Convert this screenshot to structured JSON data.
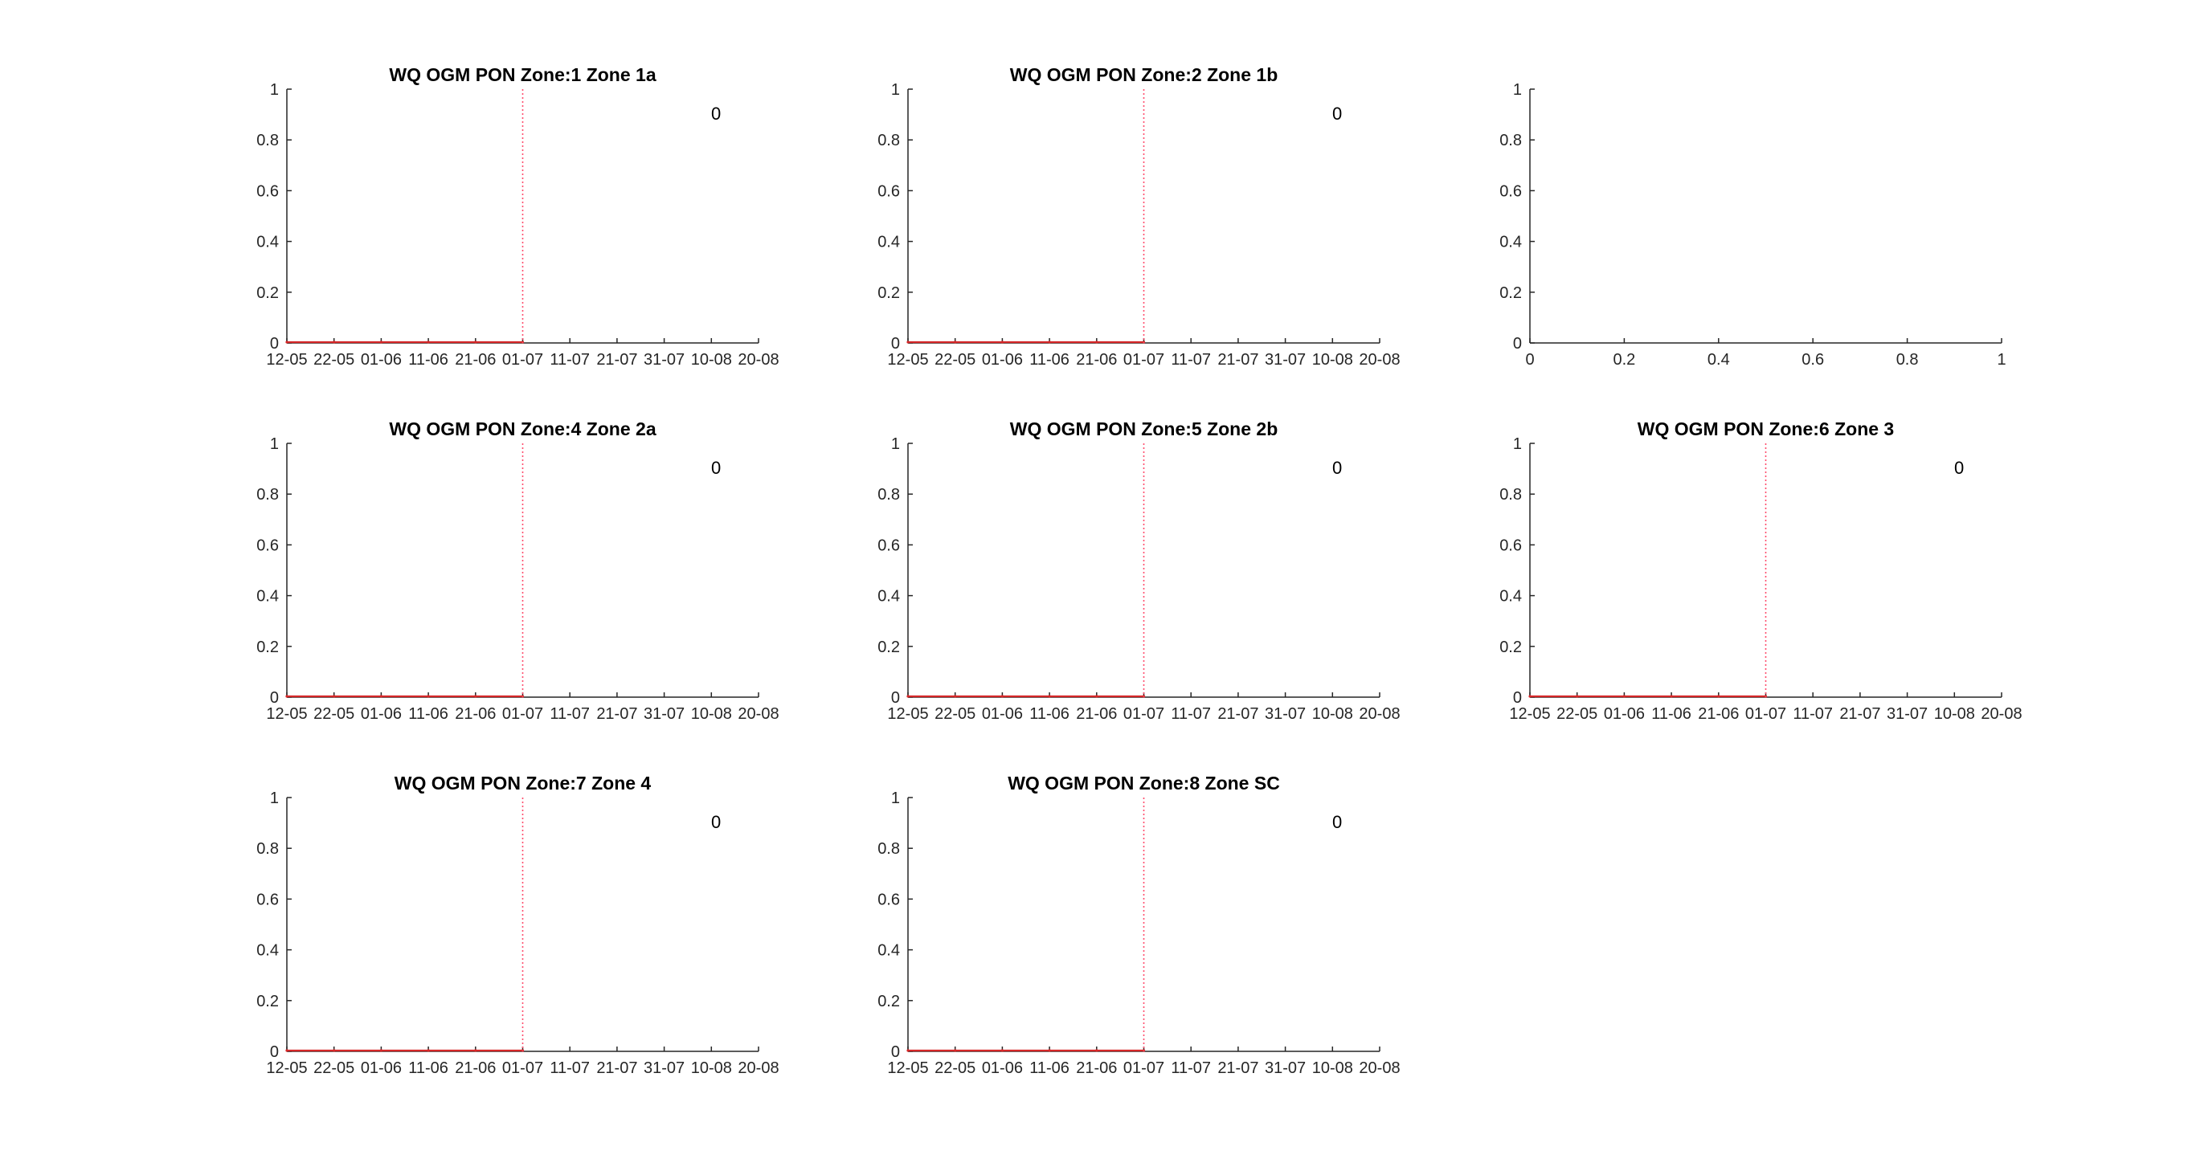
{
  "figure": {
    "background": "#ffffff"
  },
  "style": {
    "axis_color": "#262626",
    "series_color": "#d62728",
    "marker_color": "#ff4d6d"
  },
  "chart_data": [
    {
      "type": "line",
      "title": "WQ OGM PON Zone:1 Zone 1a",
      "xlabel": "",
      "ylabel": "",
      "x_type": "date",
      "xticks": [
        "12-05",
        "22-05",
        "01-06",
        "11-06",
        "21-06",
        "01-07",
        "11-07",
        "21-07",
        "31-07",
        "10-08",
        "20-08"
      ],
      "yticks": [
        "0",
        "0.2",
        "0.4",
        "0.6",
        "0.8",
        "1"
      ],
      "ylim": [
        0,
        1
      ],
      "series": [
        {
          "x": [
            "12-05",
            "22-05",
            "01-06",
            "11-06",
            "21-06",
            "01-07"
          ],
          "values": [
            0,
            0,
            0,
            0,
            0,
            0
          ]
        }
      ],
      "vline": "01-07",
      "annotation": "0",
      "grid": false
    },
    {
      "type": "line",
      "title": "WQ OGM PON Zone:2 Zone 1b",
      "xlabel": "",
      "ylabel": "",
      "x_type": "date",
      "xticks": [
        "12-05",
        "22-05",
        "01-06",
        "11-06",
        "21-06",
        "01-07",
        "11-07",
        "21-07",
        "31-07",
        "10-08",
        "20-08"
      ],
      "yticks": [
        "0",
        "0.2",
        "0.4",
        "0.6",
        "0.8",
        "1"
      ],
      "ylim": [
        0,
        1
      ],
      "series": [
        {
          "x": [
            "12-05",
            "22-05",
            "01-06",
            "11-06",
            "21-06",
            "01-07"
          ],
          "values": [
            0,
            0,
            0,
            0,
            0,
            0
          ]
        }
      ],
      "vline": "01-07",
      "annotation": "0",
      "grid": false
    },
    {
      "type": "line",
      "title": "",
      "xlabel": "",
      "ylabel": "",
      "x_type": "numeric",
      "xticks": [
        "0",
        "0.2",
        "0.4",
        "0.6",
        "0.8",
        "1"
      ],
      "yticks": [
        "0",
        "0.2",
        "0.4",
        "0.6",
        "0.8",
        "1"
      ],
      "xlim": [
        0,
        1
      ],
      "ylim": [
        0,
        1
      ],
      "series": [],
      "grid": false
    },
    {
      "type": "line",
      "title": "WQ OGM PON Zone:4 Zone 2a",
      "xlabel": "",
      "ylabel": "",
      "x_type": "date",
      "xticks": [
        "12-05",
        "22-05",
        "01-06",
        "11-06",
        "21-06",
        "01-07",
        "11-07",
        "21-07",
        "31-07",
        "10-08",
        "20-08"
      ],
      "yticks": [
        "0",
        "0.2",
        "0.4",
        "0.6",
        "0.8",
        "1"
      ],
      "ylim": [
        0,
        1
      ],
      "series": [
        {
          "x": [
            "12-05",
            "22-05",
            "01-06",
            "11-06",
            "21-06",
            "01-07"
          ],
          "values": [
            0,
            0,
            0,
            0,
            0,
            0
          ]
        }
      ],
      "vline": "01-07",
      "annotation": "0",
      "grid": false
    },
    {
      "type": "line",
      "title": "WQ OGM PON Zone:5 Zone 2b",
      "xlabel": "",
      "ylabel": "",
      "x_type": "date",
      "xticks": [
        "12-05",
        "22-05",
        "01-06",
        "11-06",
        "21-06",
        "01-07",
        "11-07",
        "21-07",
        "31-07",
        "10-08",
        "20-08"
      ],
      "yticks": [
        "0",
        "0.2",
        "0.4",
        "0.6",
        "0.8",
        "1"
      ],
      "ylim": [
        0,
        1
      ],
      "series": [
        {
          "x": [
            "12-05",
            "22-05",
            "01-06",
            "11-06",
            "21-06",
            "01-07"
          ],
          "values": [
            0,
            0,
            0,
            0,
            0,
            0
          ]
        }
      ],
      "vline": "01-07",
      "annotation": "0",
      "grid": false
    },
    {
      "type": "line",
      "title": "WQ OGM PON Zone:6 Zone 3",
      "xlabel": "",
      "ylabel": "",
      "x_type": "date",
      "xticks": [
        "12-05",
        "22-05",
        "01-06",
        "11-06",
        "21-06",
        "01-07",
        "11-07",
        "21-07",
        "31-07",
        "10-08",
        "20-08"
      ],
      "yticks": [
        "0",
        "0.2",
        "0.4",
        "0.6",
        "0.8",
        "1"
      ],
      "ylim": [
        0,
        1
      ],
      "series": [
        {
          "x": [
            "12-05",
            "22-05",
            "01-06",
            "11-06",
            "21-06",
            "01-07"
          ],
          "values": [
            0,
            0,
            0,
            0,
            0,
            0
          ]
        }
      ],
      "vline": "01-07",
      "annotation": "0",
      "grid": false
    },
    {
      "type": "line",
      "title": "WQ OGM PON Zone:7 Zone 4",
      "xlabel": "",
      "ylabel": "",
      "x_type": "date",
      "xticks": [
        "12-05",
        "22-05",
        "01-06",
        "11-06",
        "21-06",
        "01-07",
        "11-07",
        "21-07",
        "31-07",
        "10-08",
        "20-08"
      ],
      "yticks": [
        "0",
        "0.2",
        "0.4",
        "0.6",
        "0.8",
        "1"
      ],
      "ylim": [
        0,
        1
      ],
      "series": [
        {
          "x": [
            "12-05",
            "22-05",
            "01-06",
            "11-06",
            "21-06",
            "01-07"
          ],
          "values": [
            0,
            0,
            0,
            0,
            0,
            0
          ]
        }
      ],
      "vline": "01-07",
      "annotation": "0",
      "grid": false
    },
    {
      "type": "line",
      "title": "WQ OGM PON Zone:8 Zone SC",
      "xlabel": "",
      "ylabel": "",
      "x_type": "date",
      "xticks": [
        "12-05",
        "22-05",
        "01-06",
        "11-06",
        "21-06",
        "01-07",
        "11-07",
        "21-07",
        "31-07",
        "10-08",
        "20-08"
      ],
      "yticks": [
        "0",
        "0.2",
        "0.4",
        "0.6",
        "0.8",
        "1"
      ],
      "ylim": [
        0,
        1
      ],
      "series": [
        {
          "x": [
            "12-05",
            "22-05",
            "01-06",
            "11-06",
            "21-06",
            "01-07"
          ],
          "values": [
            0,
            0,
            0,
            0,
            0,
            0
          ]
        }
      ],
      "vline": "01-07",
      "annotation": "0",
      "grid": false
    }
  ]
}
